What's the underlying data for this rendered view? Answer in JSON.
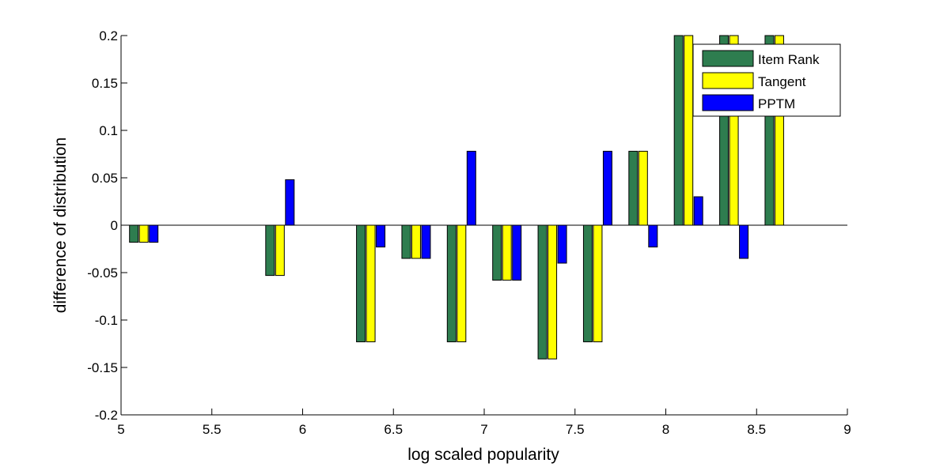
{
  "chart_data": {
    "type": "bar",
    "title": "",
    "xlabel": "log scaled popularity",
    "ylabel": "difference of distribution",
    "xlim": [
      5,
      9
    ],
    "ylim": [
      -0.2,
      0.2
    ],
    "xticks": [
      "5",
      "5.5",
      "6",
      "6.5",
      "7",
      "7.5",
      "8",
      "8.5",
      "9"
    ],
    "xtick_values": [
      5,
      5.5,
      6,
      6.5,
      7,
      7.5,
      8,
      8.5,
      9
    ],
    "yticks": [
      "-0.2",
      "-0.15",
      "-0.1",
      "-0.05",
      "0",
      "0.05",
      "0.1",
      "0.15",
      "0.2"
    ],
    "ytick_values": [
      -0.2,
      -0.15,
      -0.1,
      -0.05,
      0,
      0.05,
      0.1,
      0.15,
      0.2
    ],
    "x": [
      5.125,
      5.875,
      6.375,
      6.625,
      6.875,
      7.125,
      7.375,
      7.625,
      7.875,
      8.125,
      8.375,
      8.625
    ],
    "series": [
      {
        "name": "Item Rank",
        "color": "#2e7d4f",
        "values": [
          -0.018,
          -0.053,
          -0.123,
          -0.035,
          -0.123,
          -0.058,
          -0.141,
          -0.123,
          0.078,
          0.2,
          0.2,
          0.2
        ]
      },
      {
        "name": "Tangent",
        "color": "#ffff00",
        "values": [
          -0.018,
          -0.053,
          -0.123,
          -0.035,
          -0.123,
          -0.058,
          -0.141,
          -0.123,
          0.078,
          0.2,
          0.2,
          0.2
        ]
      },
      {
        "name": "PPTM",
        "color": "#0000ff",
        "values": [
          -0.018,
          0.048,
          -0.023,
          -0.035,
          0.078,
          -0.058,
          -0.04,
          0.078,
          -0.023,
          0.03,
          -0.035,
          null
        ]
      }
    ],
    "grid": false,
    "legend_position": "top-right"
  }
}
